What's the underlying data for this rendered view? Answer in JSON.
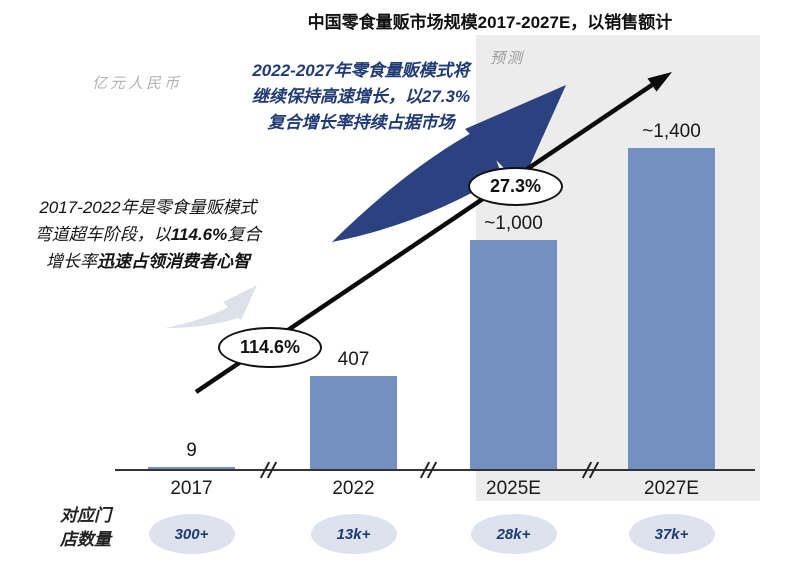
{
  "title": "中国零食量贩市场规模2017-2027E，以销售额计",
  "y_axis_unit": "亿元人民币",
  "forecast_label": "预测",
  "notes": {
    "past": {
      "pre": "2017-2022年是零食量贩模式弯道超车阶段，以",
      "pct": "114.6%",
      "mid": "复合增长率",
      "tail": "迅速占领消费者心智"
    },
    "future": {
      "pre": "2022-2027年零食量贩模式将继续保持高速增长，以",
      "pct": "27.3%",
      "mid": "复合增长率",
      "tail": "持续占据市场"
    }
  },
  "footer_label": "对应门\n店数量",
  "colors": {
    "bar": "#7390c1",
    "accent_blue": "#1f3a75",
    "arrow_blue": "#2b4180",
    "light_arrow": "#dde2ea",
    "forecast_bg": "#ececec",
    "badge_bg": "#dde3ee"
  },
  "chart_data": {
    "type": "bar",
    "title": "中国零食量贩市场规模2017-2027E，以销售额计",
    "unit": "亿元人民币",
    "categories": [
      "2017",
      "2022",
      "2025E",
      "2027E"
    ],
    "values": [
      9,
      407,
      1000,
      1400
    ],
    "value_labels": [
      "9",
      "407",
      "~1,000",
      "~1,400"
    ],
    "store_counts": [
      "300+",
      "13k+",
      "28k+",
      "37k+"
    ],
    "store_counts_label": "对应门店数量",
    "cagr_2017_2022": "114.6%",
    "cagr_2022_2027": "27.3%",
    "forecast_categories": [
      "2025E",
      "2027E"
    ],
    "axis_breaks": true,
    "grid": false,
    "legend": false,
    "ylim": [
      0,
      1500
    ]
  }
}
